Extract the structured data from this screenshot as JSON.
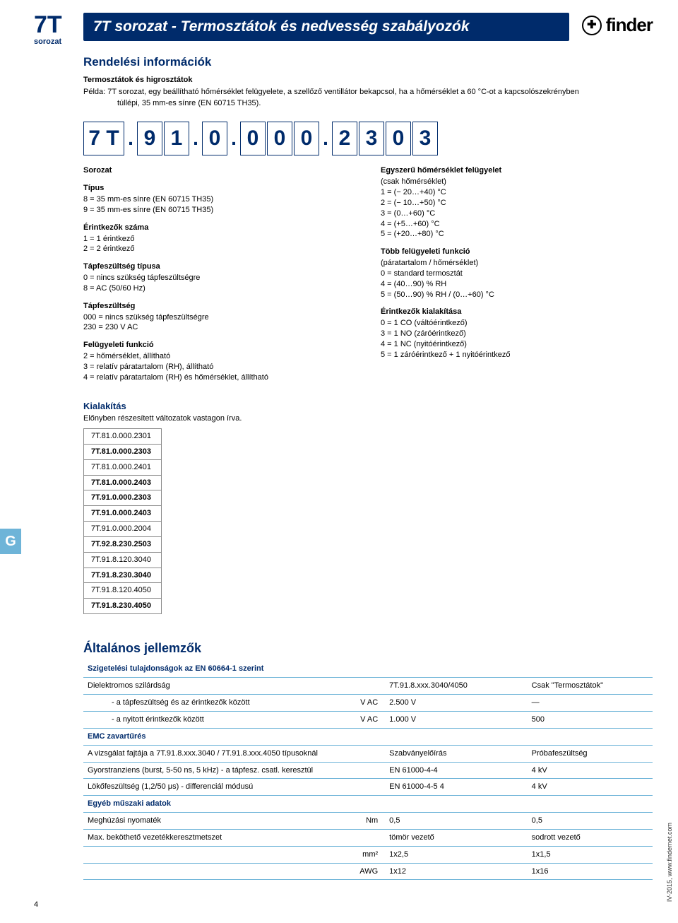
{
  "header": {
    "series_big": "7T",
    "series_small": "sorozat",
    "title": "7T sorozat - Termosztátok és nedvesség szabályozók",
    "logo_text": "finder",
    "logo_glyph": "✚"
  },
  "ordering": {
    "section_title": "Rendelési információk",
    "intro_bold": "Termosztátok és higrosztátok",
    "intro_line1": "Példa: 7T sorozat, egy beállítható hőmérséklet felügyelete, a szellőző ventillátor bekapcsol, ha a hőmérséklet a 60 °C-ot a kapcsolószekrényben",
    "intro_line2": "túllépi, 35 mm-es sínre (EN 60715 TH35).",
    "code_boxes": [
      "7 T",
      ".",
      "9",
      "1",
      ".",
      "0",
      ".",
      "0",
      "0",
      "0",
      ".",
      "2",
      "3",
      "0",
      "3"
    ],
    "left_groups": [
      {
        "title": "Sorozat",
        "lines": []
      },
      {
        "title": "Típus",
        "lines": [
          "8 = 35 mm-es sínre (EN 60715 TH35)",
          "9 = 35 mm-es sínre (EN 60715 TH35)"
        ]
      },
      {
        "title": "Érintkezők száma",
        "lines": [
          "1 = 1 érintkező",
          "2 = 2 érintkező"
        ]
      },
      {
        "title": "Tápfeszültség típusa",
        "lines": [
          "0 = nincs szükség tápfeszültségre",
          "8 = AC (50/60 Hz)"
        ]
      },
      {
        "title": "Tápfeszültség",
        "lines": [
          "000 = nincs szükség tápfeszültségre",
          "230 = 230 V AC"
        ]
      },
      {
        "title": "Felügyeleti funkció",
        "lines": [
          "2 = hőmérséklet, állítható",
          "3 = relatív páratartalom (RH), állítható",
          "4 = relatív páratartalom (RH) és hőmérséklet, állítható"
        ]
      }
    ],
    "right_groups": [
      {
        "title": "Egyszerű hőmérséklet felügyelet",
        "lines": [
          "(csak hőmérséklet)",
          "1 = (− 20…+40) °C",
          "2 = (− 10…+50) °C",
          "3 = (0…+60) °C",
          "4 = (+5…+60) °C",
          "5 = (+20…+80) °C"
        ]
      },
      {
        "title": "Több felügyeleti funkció",
        "lines": [
          "(páratartalom / hőmérséklet)",
          "0 = standard termosztát",
          "4 = (40…90) % RH",
          "5 = (50…90) % RH / (0…+60) °C"
        ]
      },
      {
        "title": "Érintkezők kialakítása",
        "lines": [
          "0 = 1 CO (váltóérintkező)",
          "3 = 1 NO (záróérintkező)",
          "4 = 1 NC (nyitóérintkező)",
          "5 = 1 záróérintkező + 1 nyitóérintkező"
        ]
      }
    ],
    "kialakitas_title": "Kialakítás",
    "kialakitas_note": "Előnyben részesített változatok vastagon írva.",
    "parts": [
      {
        "v": "7T.81.0.000.2301",
        "b": false
      },
      {
        "v": "7T.81.0.000.2303",
        "b": true
      },
      {
        "v": "7T.81.0.000.2401",
        "b": false
      },
      {
        "v": "7T.81.0.000.2403",
        "b": true
      },
      {
        "v": "7T.91.0.000.2303",
        "b": true
      },
      {
        "v": "7T.91.0.000.2403",
        "b": true
      },
      {
        "v": "7T.91.0.000.2004",
        "b": false
      },
      {
        "v": "7T.92.8.230.2503",
        "b": true
      },
      {
        "v": "7T.91.8.120.3040",
        "b": false
      },
      {
        "v": "7T.91.8.230.3040",
        "b": true
      },
      {
        "v": "7T.91.8.120.4050",
        "b": false
      },
      {
        "v": "7T.91.8.230.4050",
        "b": true
      }
    ]
  },
  "chars": {
    "section_title": "Általános jellemzők",
    "hdr1": "Szigetelési tulajdonságok az EN 60664-1 szerint",
    "rows1": [
      [
        "Dielektromos szilárdság",
        "",
        "7T.91.8.xxx.3040/4050",
        "Csak \"Termosztátok\""
      ],
      [
        "- a tápfeszültség és az érintkezők között",
        "V AC",
        "2.500 V",
        "—"
      ],
      [
        "- a nyitott érintkezők között",
        "V AC",
        "1.000 V",
        "500"
      ]
    ],
    "hdr2": "EMC zavartűrés",
    "rows2": [
      [
        "A vizsgálat fajtája a 7T.91.8.xxx.3040 / 7T.91.8.xxx.4050 típusoknál",
        "",
        "Szabványelőírás",
        "Próbafeszültség"
      ],
      [
        "Gyorstranziens (burst, 5-50 ns, 5 kHz)  - a tápfesz. csatl. keresztül",
        "",
        "EN 61000-4-4",
        "4 kV"
      ],
      [
        "Lökőfeszültség (1,2/50 μs)              - differenciál módusú",
        "",
        "EN 61000-4-5 4",
        "4 kV"
      ]
    ],
    "hdr3": "Egyéb műszaki adatok",
    "rows3": [
      [
        "Meghúzási nyomaték",
        "Nm",
        "0,5",
        "0,5"
      ],
      [
        "Max. beköthető vezetékkeresztmetszet",
        "",
        "tömör vezető",
        "sodrott vezető"
      ],
      [
        "",
        "mm²",
        "1x2,5",
        "1x1,5"
      ],
      [
        "",
        "AWG",
        "1x12",
        "1x16"
      ]
    ]
  },
  "footer": {
    "page": "4",
    "side": "IV-2015, www.findernet.com",
    "g_tab": "G"
  },
  "colors": {
    "brand": "#002b6b",
    "tab": "#6eb4d8",
    "rule": "#6eb4d8"
  }
}
